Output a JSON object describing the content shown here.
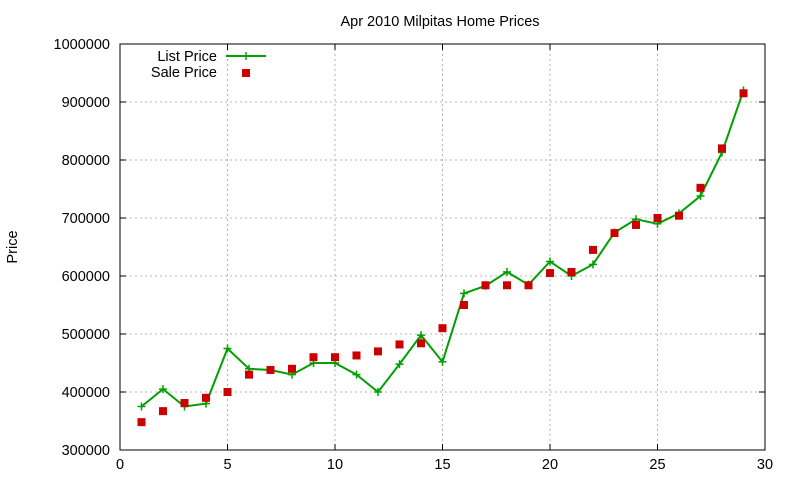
{
  "chart_data": {
    "type": "line",
    "title": "Apr 2010 Milpitas Home Prices",
    "xlabel": "",
    "ylabel": "Price",
    "xlim": [
      0,
      30
    ],
    "ylim": [
      300000,
      1000000
    ],
    "x_ticks": [
      0,
      5,
      10,
      15,
      20,
      25,
      30
    ],
    "y_ticks": [
      300000,
      400000,
      500000,
      600000,
      700000,
      800000,
      900000,
      1000000
    ],
    "grid": true,
    "legend_position": "top-left",
    "series": [
      {
        "name": "List Price",
        "style": "line+cross",
        "color": "#00a000",
        "x": [
          1,
          2,
          3,
          4,
          5,
          6,
          7,
          8,
          9,
          10,
          11,
          12,
          13,
          14,
          15,
          16,
          17,
          18,
          19,
          20,
          21,
          22,
          23,
          24,
          25,
          26,
          27,
          28,
          29
        ],
        "y": [
          375000,
          405000,
          375000,
          380000,
          475000,
          440000,
          438000,
          430000,
          450000,
          450000,
          430000,
          400000,
          448000,
          498000,
          452000,
          570000,
          583000,
          607000,
          585000,
          625000,
          600000,
          620000,
          675000,
          698000,
          690000,
          708000,
          738000,
          813000,
          920000
        ]
      },
      {
        "name": "Sale Price",
        "style": "square",
        "color": "#cc0000",
        "x": [
          1,
          2,
          3,
          4,
          5,
          6,
          7,
          8,
          9,
          10,
          11,
          12,
          13,
          14,
          15,
          16,
          17,
          18,
          19,
          20,
          21,
          22,
          23,
          24,
          25,
          26,
          27,
          28,
          29
        ],
        "y": [
          348000,
          367000,
          381000,
          390000,
          400000,
          430000,
          438000,
          440000,
          460000,
          460000,
          463000,
          470000,
          482000,
          484000,
          510000,
          550000,
          584000,
          584000,
          584000,
          605000,
          607000,
          645000,
          674000,
          688000,
          700000,
          704000,
          752000,
          820000,
          915000
        ]
      }
    ]
  }
}
